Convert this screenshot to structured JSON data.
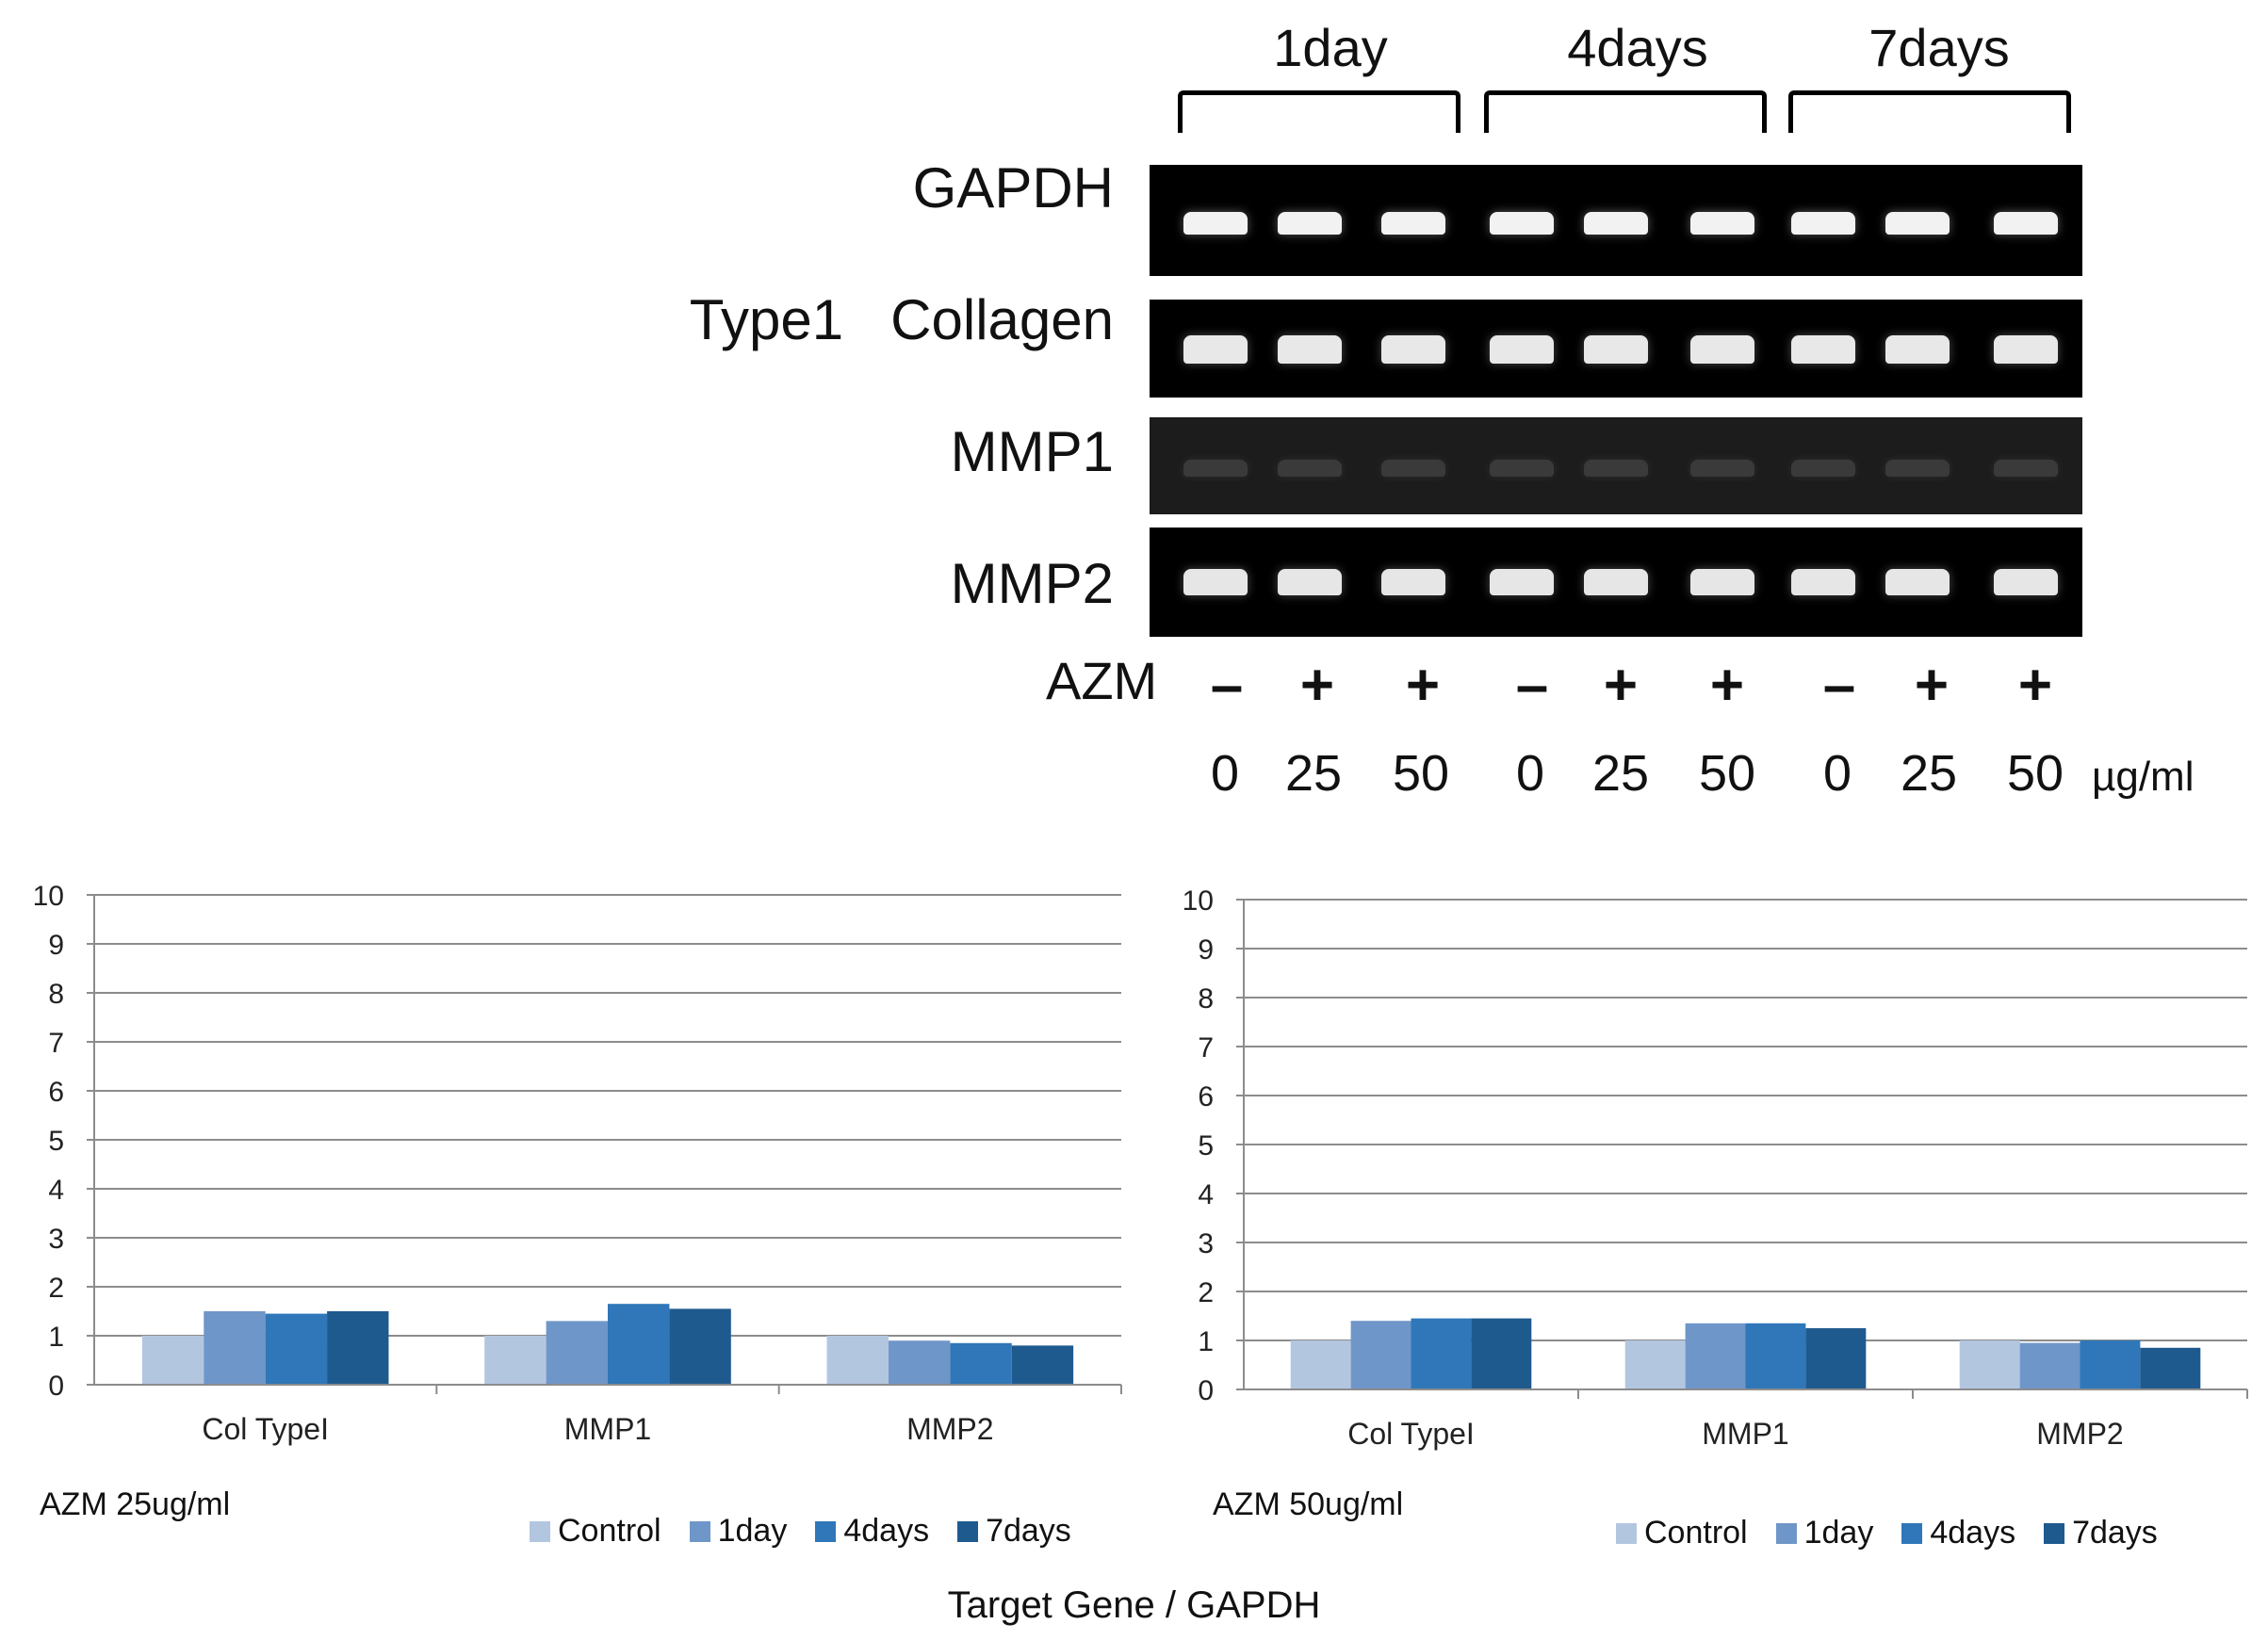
{
  "gel": {
    "time_groups": [
      "1day",
      "4days",
      "7days"
    ],
    "genes": [
      "GAPDH",
      "Type1   Collagen",
      "MMP1",
      "MMP2"
    ],
    "azm_label": "AZM",
    "signs": [
      "–",
      "+",
      "+",
      "–",
      "+",
      "+",
      "–",
      "+",
      "+"
    ],
    "doses": [
      "0",
      "25",
      "50",
      "0",
      "25",
      "50",
      "0",
      "25",
      "50"
    ],
    "unit": "µg/ml"
  },
  "charts_meta": {
    "x_axis_title": "Target Gene / GAPDH",
    "left_caption": "AZM 25ug/ml",
    "right_caption": "AZM 50ug/ml"
  },
  "chart_data": [
    {
      "type": "bar",
      "title": "AZM 25ug/ml",
      "categories": [
        "Col TypeI",
        "MMP1",
        "MMP2"
      ],
      "series": [
        {
          "name": "Control",
          "color": "#b3c6e0",
          "values": [
            1.0,
            1.0,
            1.0
          ]
        },
        {
          "name": "1day",
          "color": "#6f96c8",
          "values": [
            1.5,
            1.3,
            0.9
          ]
        },
        {
          "name": "4days",
          "color": "#2f77b8",
          "values": [
            1.45,
            1.65,
            0.85
          ]
        },
        {
          "name": "7days",
          "color": "#1f5a8f",
          "values": [
            1.5,
            1.55,
            0.8
          ]
        }
      ],
      "ylim": [
        0,
        10
      ],
      "yticks": [
        "0",
        "1",
        "2",
        "3",
        "4",
        "5",
        "6",
        "7",
        "8",
        "9",
        "10"
      ],
      "xlabel": "Target Gene / GAPDH",
      "ylabel": "",
      "legend": "bottom-right",
      "grid": true
    },
    {
      "type": "bar",
      "title": "AZM 50ug/ml",
      "categories": [
        "Col TypeI",
        "MMP1",
        "MMP2"
      ],
      "series": [
        {
          "name": "Control",
          "color": "#b3c6e0",
          "values": [
            1.0,
            1.0,
            1.0
          ]
        },
        {
          "name": "1day",
          "color": "#6f96c8",
          "values": [
            1.4,
            1.35,
            0.95
          ]
        },
        {
          "name": "4days",
          "color": "#2f77b8",
          "values": [
            1.45,
            1.35,
            1.0
          ]
        },
        {
          "name": "7days",
          "color": "#1f5a8f",
          "values": [
            1.45,
            1.25,
            0.85
          ]
        }
      ],
      "ylim": [
        0,
        10
      ],
      "yticks": [
        "0",
        "1",
        "2",
        "3",
        "4",
        "5",
        "6",
        "7",
        "8",
        "9",
        "10"
      ],
      "xlabel": "Target Gene / GAPDH",
      "ylabel": "",
      "legend": "bottom-right",
      "grid": true
    }
  ]
}
